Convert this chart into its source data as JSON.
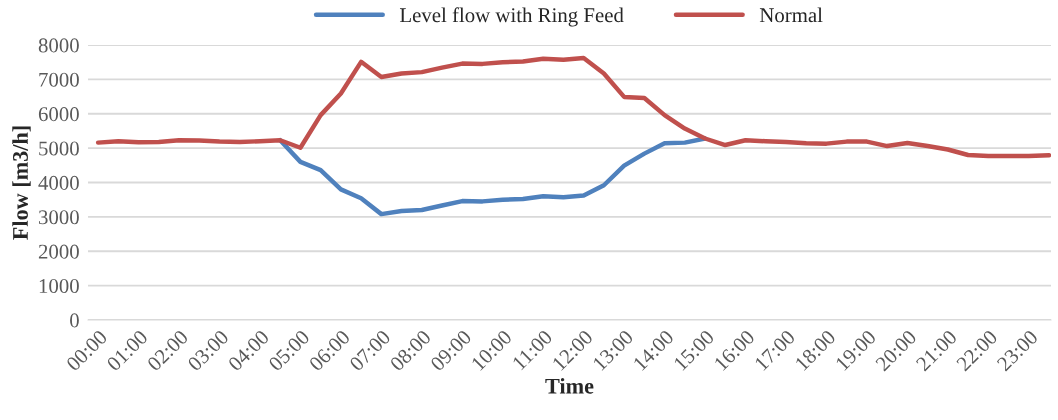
{
  "chart_data": {
    "type": "line",
    "xlabel": "Time",
    "ylabel": "Flow [m3/h]",
    "categories": [
      "00:00",
      null,
      "01:00",
      null,
      "02:00",
      null,
      "03:00",
      null,
      "04:00",
      null,
      "05:00",
      null,
      "06:00",
      null,
      "07:00",
      null,
      "08:00",
      null,
      "09:00",
      null,
      "10:00",
      null,
      "11:00",
      null,
      "12:00",
      null,
      "13:00",
      null,
      "14:00",
      null,
      "15:00",
      null,
      "16:00",
      null,
      "17:00",
      null,
      "18:00",
      null,
      "19:00",
      null,
      "20:00",
      null,
      "21:00",
      null,
      "22:00",
      null,
      "23:00",
      null
    ],
    "series": [
      {
        "name": "Level flow with Ring Feed",
        "color": "#4f81bd",
        "values": [
          null,
          null,
          null,
          null,
          null,
          null,
          null,
          null,
          null,
          5230,
          4600,
          4360,
          3800,
          3540,
          3080,
          3170,
          3200,
          3330,
          3460,
          3450,
          3500,
          3520,
          3600,
          3570,
          3620,
          3920,
          4490,
          4840,
          5140,
          5160,
          5280,
          null,
          null,
          null,
          null,
          null,
          null,
          null,
          null,
          null,
          null,
          null,
          null,
          null,
          null,
          null,
          null,
          null
        ]
      },
      {
        "name": "Normal",
        "color": "#c0504d",
        "values": [
          5160,
          5200,
          5170,
          5180,
          5230,
          5220,
          5190,
          5180,
          5200,
          5230,
          5010,
          5960,
          6590,
          7510,
          7070,
          7170,
          7210,
          7340,
          7460,
          7450,
          7500,
          7520,
          7600,
          7570,
          7620,
          7170,
          6490,
          6460,
          5960,
          5570,
          5280,
          5090,
          5230,
          5200,
          5180,
          5140,
          5130,
          5190,
          5190,
          5060,
          5150,
          5060,
          4960,
          4800,
          4770,
          4770,
          4770,
          4790
        ]
      }
    ],
    "ylim": [
      0,
      8000
    ],
    "yticks": [
      0,
      1000,
      2000,
      3000,
      4000,
      5000,
      6000,
      7000,
      8000
    ],
    "grid": "y",
    "legend": "top",
    "marker": "none",
    "line_style": "solid"
  }
}
